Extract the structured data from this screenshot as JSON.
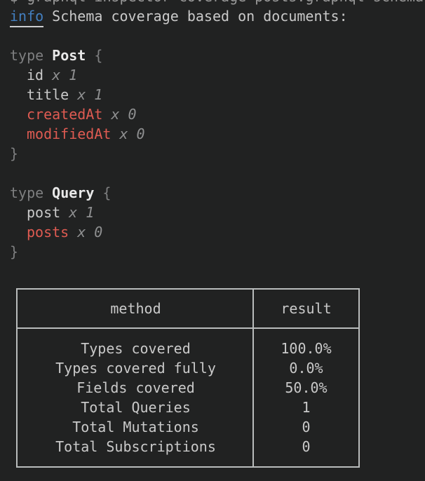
{
  "colors": {
    "background": "#212222",
    "text": "#c9c9c9",
    "dim": "#7e7f80",
    "bold_type_name": "#e9e9e9",
    "uncovered_red": "#df5b52",
    "info_blue": "#437fc0",
    "table_border": "#b9bcbc"
  },
  "terminal": {
    "top_line_truncated": "$ graphql-inspector coverage posts.graphql schema",
    "info_label": "info",
    "info_message": "Schema coverage based on documents:"
  },
  "schema": {
    "types": [
      {
        "keyword": "type",
        "name": "Post",
        "open_brace": "{",
        "close_brace": "}",
        "fields": [
          {
            "name": "id",
            "usage": "x 1"
          },
          {
            "name": "title",
            "usage": "x 1"
          },
          {
            "name": "createdAt",
            "usage": "x 0"
          },
          {
            "name": "modifiedAt",
            "usage": "x 0"
          }
        ]
      },
      {
        "keyword": "type",
        "name": "Query",
        "open_brace": "{",
        "close_brace": "}",
        "fields": [
          {
            "name": "post",
            "usage": "x 1"
          },
          {
            "name": "posts",
            "usage": "x 0"
          }
        ]
      }
    ]
  },
  "coverage_table": {
    "headers": {
      "method": "method",
      "result": "result"
    },
    "rows": [
      {
        "method": "Types covered",
        "result": "100.0%"
      },
      {
        "method": "Types covered fully",
        "result": "0.0%"
      },
      {
        "method": "Fields covered",
        "result": "50.0%"
      },
      {
        "method": "Total Queries",
        "result": "1"
      },
      {
        "method": "Total Mutations",
        "result": "0"
      },
      {
        "method": "Total Subscriptions",
        "result": "0"
      }
    ]
  }
}
